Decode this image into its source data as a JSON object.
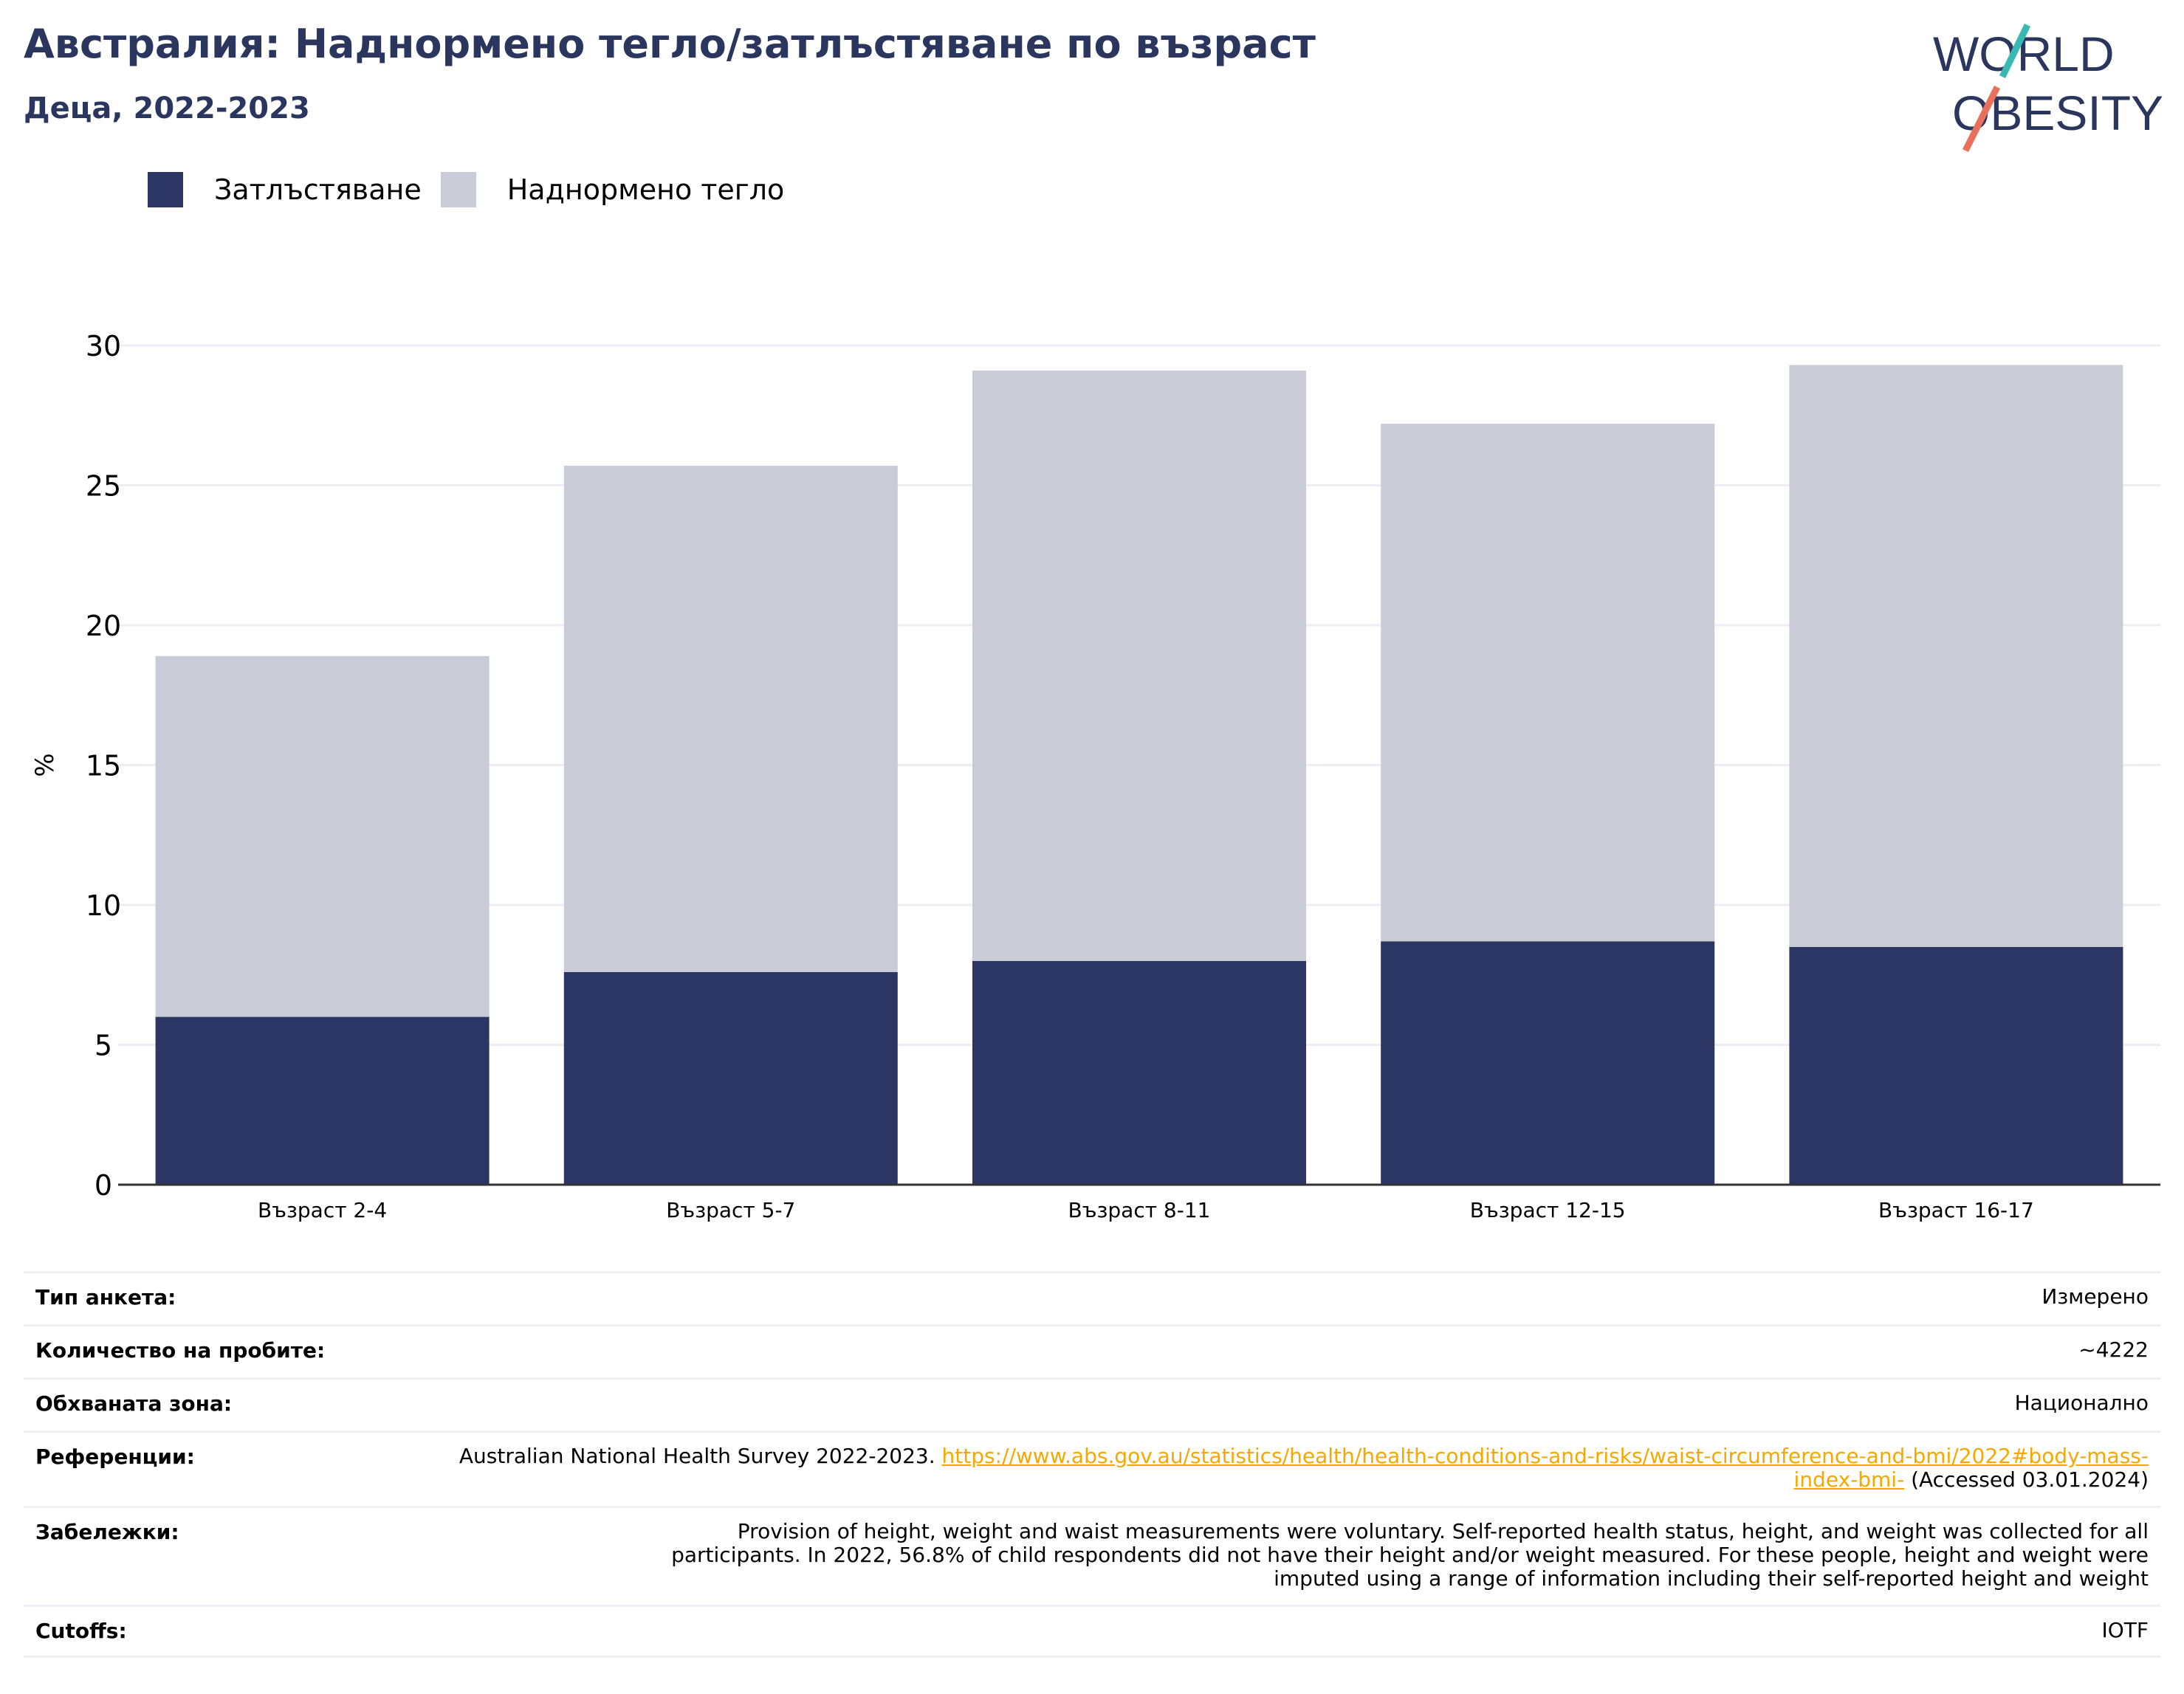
{
  "header": {
    "title": "Австралия: Наднормено тегло/затлъстяване по възраст",
    "subtitle": "Деца, 2022-2023"
  },
  "logo": {
    "line1": "WORLD",
    "line2": "OBESITY"
  },
  "colors": {
    "obesity": "#2b3665",
    "overweight": "#c9ccd7",
    "title": "#2b365f",
    "link": "#f5a800"
  },
  "chart_data": {
    "type": "bar",
    "stacked": true,
    "categories": [
      "Възраст 2-4",
      "Възраст 5-7",
      "Възраст 8-11",
      "Възраст 12-15",
      "Възраст 16-17"
    ],
    "series": [
      {
        "name": "Затлъстяване",
        "values": [
          6.0,
          7.6,
          8.0,
          8.7,
          8.5
        ]
      },
      {
        "name": "Наднормено тегло",
        "values": [
          12.9,
          18.1,
          21.1,
          18.5,
          20.8
        ]
      }
    ],
    "totals": [
      18.9,
      25.7,
      29.1,
      27.2,
      29.3
    ],
    "ylabel": "%",
    "ylim": [
      0,
      30
    ],
    "yticks": [
      "0",
      "5",
      "10",
      "15",
      "20",
      "25",
      "30"
    ],
    "grid": true,
    "legend_position": "top-left"
  },
  "info": {
    "survey_type": {
      "label": "Тип анкета:",
      "value": "Измерено"
    },
    "sample_size": {
      "label": "Количество на пробите:",
      "value": "~4222"
    },
    "area": {
      "label": "Обхваната зона:",
      "value": "Национално"
    },
    "references": {
      "label": "Референции:",
      "text": "Australian National Health Survey 2022-2023. ",
      "link": "https://www.abs.gov.au/statistics/health/health-conditions-and-risks/waist-circumference-and-bmi/2022#body-mass-index-bmi-",
      "suffix": " (Accessed 03.01.2024)"
    },
    "notes": {
      "label": "Забележки:",
      "value": "Provision of height, weight and waist measurements were voluntary. Self-reported health status, height, and weight was collected for all participants. In 2022, 56.8% of child respondents did not have their height and/or weight measured. For these people, height and weight were imputed using a range of information including their self-reported height and weight"
    },
    "cutoffs": {
      "label": "Cutoffs:",
      "value": "IOTF"
    }
  }
}
